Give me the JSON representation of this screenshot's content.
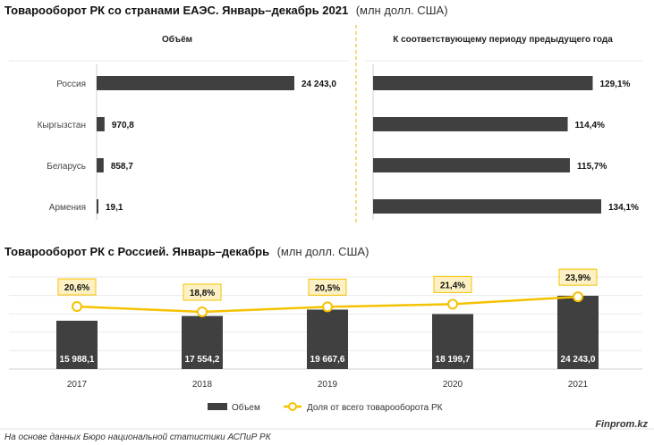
{
  "top": {
    "title_bold": "Товарооборот РК со странами ЕАЭС. Январь–декабрь 2021",
    "title_unit": "(млн долл. США)",
    "left_header": "Объём",
    "right_header": "К соответствующему периоду предыдущего года"
  },
  "bottom": {
    "title_bold": "Товарооборот РК с Россией. Январь–декабрь",
    "title_unit": "(млн долл. США)"
  },
  "legend": {
    "bar": "Объем",
    "line": "Доля от всего товарооборота РК"
  },
  "footer": {
    "source": "На основе данных Бюро национальной статистики АСПиР РК",
    "brand": "Finprom.kz"
  },
  "colors": {
    "bar": "#404040",
    "line": "#f5c200",
    "label_box": "#fdf1c4",
    "divider": "#f0b400"
  },
  "chart_data": [
    {
      "type": "bar",
      "orientation": "horizontal",
      "categories": [
        "Россия",
        "Кыргызстан",
        "Беларусь",
        "Армения"
      ],
      "values": [
        24243.0,
        970.8,
        858.7,
        19.1
      ],
      "labels": [
        "24 243,0",
        "970,8",
        "858,7",
        "19,1"
      ],
      "title": "Объём"
    },
    {
      "type": "bar",
      "orientation": "horizontal",
      "categories": [
        "Россия",
        "Кыргызстан",
        "Беларусь",
        "Армения"
      ],
      "values": [
        129.1,
        114.4,
        115.7,
        134.1
      ],
      "labels": [
        "129,1%",
        "114,4%",
        "115,7%",
        "134,1%"
      ],
      "title": "К соответствующему периоду предыдущего года"
    },
    {
      "type": "bar",
      "categories": [
        "2017",
        "2018",
        "2019",
        "2020",
        "2021"
      ],
      "series": [
        {
          "name": "Объем",
          "type": "bar",
          "values": [
            15988.1,
            17554.2,
            19667.6,
            18199.7,
            24243.0
          ],
          "labels": [
            "15 988,1",
            "17 554,2",
            "19 667,6",
            "18 199,7",
            "24 243,0"
          ]
        },
        {
          "name": "Доля от всего товарооборота РК",
          "type": "line",
          "values": [
            20.6,
            18.8,
            20.5,
            21.4,
            23.9
          ],
          "labels": [
            "20,6%",
            "18,8%",
            "20,5%",
            "21,4%",
            "23,9%"
          ]
        }
      ],
      "legend": "bottom-center",
      "grid": true
    }
  ]
}
